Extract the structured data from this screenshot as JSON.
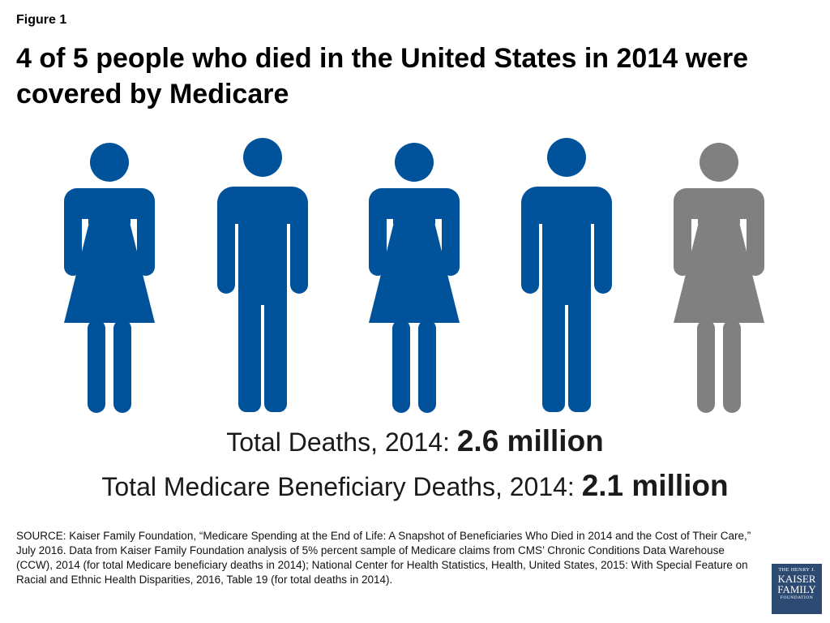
{
  "header": {
    "figure_label": "Figure 1",
    "title": "4 of 5 people who died in the United States in 2014 were covered by Medicare"
  },
  "chart_data": {
    "type": "pictograph",
    "icons": [
      {
        "figure": "female",
        "covered_by_medicare": true
      },
      {
        "figure": "male",
        "covered_by_medicare": true
      },
      {
        "figure": "female",
        "covered_by_medicare": true
      },
      {
        "figure": "male",
        "covered_by_medicare": true
      },
      {
        "figure": "female",
        "covered_by_medicare": false
      }
    ],
    "highlighted": 4,
    "total": 5,
    "colors": {
      "covered": "#00529b",
      "not_covered": "#808080"
    }
  },
  "stats": {
    "total_deaths_label": "Total Deaths, 2014: ",
    "total_deaths_value": "2.6 million",
    "medicare_deaths_label": "Total Medicare Beneficiary Deaths, 2014: ",
    "medicare_deaths_value": "2.1 million"
  },
  "source": "SOURCE: Kaiser Family Foundation, “Medicare Spending at the End of Life: A Snapshot of Beneficiaries Who Died in 2014 and the Cost of Their Care,” July 2016. Data from Kaiser Family Foundation analysis of 5% percent sample of Medicare claims from CMS’ Chronic Conditions Data Warehouse (CCW), 2014 (for total Medicare beneficiary deaths in 2014); National Center for Health Statistics, Health, United States, 2015: With Special Feature on Racial and Ethnic Health Disparities, 2016, Table 19 (for total deaths in 2014).",
  "logo": {
    "line1": "THE HENRY J.",
    "line2": "KAISER",
    "line3": "FAMILY",
    "line4": "FOUNDATION"
  }
}
